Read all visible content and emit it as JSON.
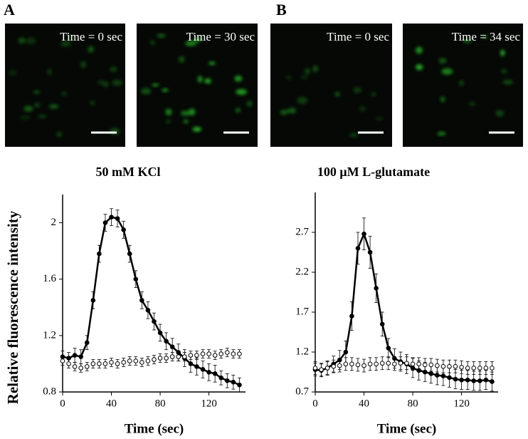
{
  "figure": {
    "panels": [
      {
        "label": "A",
        "captions": [
          "Time = 0 sec",
          "Time = 30 sec"
        ]
      },
      {
        "label": "B",
        "captions": [
          "Time = 0 sec",
          "Time = 34 sec"
        ]
      }
    ]
  },
  "chart_data": [
    {
      "type": "line",
      "title": "50 mM KCl",
      "xlabel": "Time (sec)",
      "ylabel": "Relative fluorescence intensity",
      "x": [
        0,
        5,
        10,
        15,
        20,
        25,
        30,
        35,
        40,
        45,
        50,
        55,
        60,
        65,
        70,
        75,
        80,
        85,
        90,
        95,
        100,
        105,
        110,
        115,
        120,
        125,
        130,
        135,
        140,
        145
      ],
      "series": [
        {
          "color": "#000000",
          "marker": "filled",
          "connected": true,
          "values": [
            1.05,
            1.04,
            1.06,
            1.05,
            1.15,
            1.45,
            1.78,
            2.0,
            2.04,
            2.03,
            1.95,
            1.78,
            1.6,
            1.45,
            1.38,
            1.3,
            1.22,
            1.16,
            1.12,
            1.08,
            1.04,
            1.0,
            0.98,
            0.96,
            0.94,
            0.93,
            0.9,
            0.88,
            0.87,
            0.85
          ],
          "errors": [
            0.04,
            0.04,
            0.05,
            0.05,
            0.05,
            0.06,
            0.06,
            0.06,
            0.06,
            0.06,
            0.06,
            0.06,
            0.06,
            0.06,
            0.06,
            0.06,
            0.06,
            0.06,
            0.06,
            0.06,
            0.06,
            0.06,
            0.06,
            0.06,
            0.06,
            0.06,
            0.05,
            0.05,
            0.05,
            0.05
          ]
        },
        {
          "color": "#000000",
          "marker": "open",
          "connected": false,
          "values": [
            1.02,
            1.0,
            0.98,
            0.97,
            0.98,
            1.0,
            1.0,
            1.0,
            1.01,
            1.0,
            1.01,
            1.02,
            1.02,
            1.01,
            1.02,
            1.03,
            1.04,
            1.04,
            1.05,
            1.05,
            1.05,
            1.06,
            1.06,
            1.07,
            1.07,
            1.06,
            1.07,
            1.08,
            1.07,
            1.07
          ],
          "errors": [
            0.03,
            0.03,
            0.03,
            0.03,
            0.03,
            0.03,
            0.03,
            0.03,
            0.03,
            0.03,
            0.03,
            0.03,
            0.03,
            0.03,
            0.03,
            0.03,
            0.03,
            0.03,
            0.03,
            0.03,
            0.03,
            0.03,
            0.03,
            0.03,
            0.03,
            0.03,
            0.03,
            0.03,
            0.03,
            0.03
          ]
        }
      ],
      "xlim": [
        0,
        150
      ],
      "ylim": [
        0.8,
        2.2
      ],
      "xticks": [
        0,
        40,
        80,
        120
      ],
      "yticks": [
        0.8,
        1.2,
        1.6,
        2
      ]
    },
    {
      "type": "line",
      "title": "100 μM L-glutamate",
      "xlabel": "Time (sec)",
      "x": [
        0,
        5,
        10,
        15,
        20,
        25,
        30,
        35,
        40,
        45,
        50,
        55,
        60,
        65,
        70,
        75,
        80,
        85,
        90,
        95,
        100,
        105,
        110,
        115,
        120,
        125,
        130,
        135,
        140,
        145
      ],
      "series": [
        {
          "color": "#000000",
          "marker": "filled",
          "connected": true,
          "values": [
            0.98,
            0.97,
            1.0,
            1.05,
            1.1,
            1.2,
            1.65,
            2.5,
            2.68,
            2.45,
            2.0,
            1.55,
            1.25,
            1.12,
            1.08,
            1.05,
            1.0,
            0.97,
            0.95,
            0.93,
            0.91,
            0.9,
            0.88,
            0.86,
            0.85,
            0.85,
            0.84,
            0.84,
            0.85,
            0.83
          ],
          "errors": [
            0.08,
            0.08,
            0.09,
            0.1,
            0.12,
            0.14,
            0.18,
            0.2,
            0.2,
            0.2,
            0.18,
            0.15,
            0.12,
            0.12,
            0.12,
            0.12,
            0.12,
            0.12,
            0.12,
            0.12,
            0.12,
            0.12,
            0.12,
            0.12,
            0.12,
            0.12,
            0.12,
            0.12,
            0.12,
            0.12
          ]
        },
        {
          "color": "#000000",
          "marker": "open",
          "connected": false,
          "values": [
            1.0,
            0.98,
            1.0,
            1.02,
            1.03,
            1.05,
            1.05,
            1.04,
            1.03,
            1.05,
            1.05,
            1.06,
            1.06,
            1.05,
            1.06,
            1.06,
            1.05,
            1.05,
            1.04,
            1.04,
            1.03,
            1.02,
            1.02,
            1.02,
            1.01,
            1.0,
            1.0,
            1.0,
            1.0,
            1.0
          ],
          "errors": [
            0.08,
            0.08,
            0.08,
            0.08,
            0.08,
            0.08,
            0.08,
            0.08,
            0.08,
            0.08,
            0.08,
            0.08,
            0.08,
            0.08,
            0.08,
            0.08,
            0.08,
            0.08,
            0.08,
            0.08,
            0.08,
            0.08,
            0.08,
            0.08,
            0.08,
            0.08,
            0.08,
            0.08,
            0.08,
            0.08
          ]
        }
      ],
      "xlim": [
        0,
        150
      ],
      "ylim": [
        0.7,
        3.2
      ],
      "xticks": [
        0,
        40,
        80,
        120
      ],
      "yticks": [
        0.7,
        1.2,
        1.7,
        2.2,
        2.7
      ]
    }
  ]
}
